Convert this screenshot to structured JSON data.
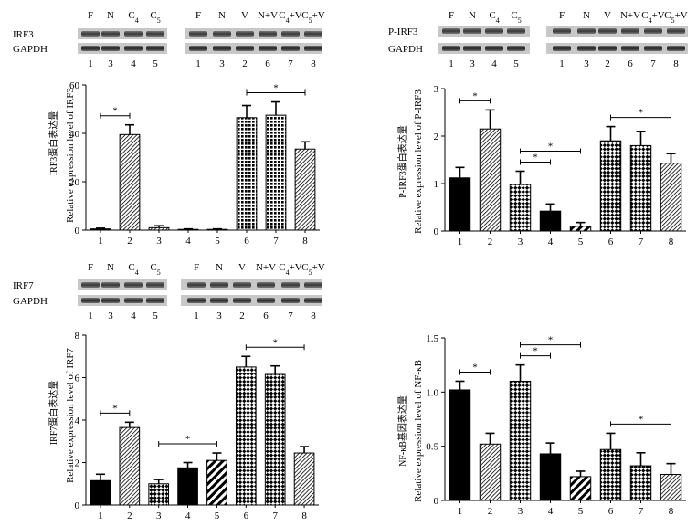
{
  "colors": {
    "ink": "#000000",
    "band": "#1e1e1e",
    "blot_bg": "#c8c8c8",
    "paper": "#ffffff"
  },
  "chart_data": [
    {
      "type": "bar",
      "panel": "IRF3",
      "title": "",
      "categories": [
        "1",
        "2",
        "3",
        "4",
        "5",
        "6",
        "7",
        "8"
      ],
      "values": [
        0.5,
        39.5,
        1.0,
        0.3,
        0.3,
        46.5,
        47.5,
        33.5
      ],
      "errors": [
        0.3,
        4.0,
        0.8,
        0.2,
        0.2,
        5.0,
        5.5,
        3.0
      ],
      "ylim": [
        0,
        60
      ],
      "yticks": [
        "0",
        "20",
        "40",
        "60"
      ],
      "ylabel_cn": "IRF3蛋白表达量",
      "ylabel_en": "Relative expression level of IRF3",
      "patterns": [
        "black",
        "diag",
        "diag",
        "diag",
        "diag",
        "grid",
        "grid",
        "diag"
      ],
      "significance": [
        {
          "from": "1",
          "to": "2",
          "label": "*"
        },
        {
          "from": "6",
          "to": "8",
          "label": "*"
        }
      ],
      "blot": {
        "rows": [
          "IRF3",
          "GAPDH"
        ],
        "left_headers": [
          "F",
          "N",
          "C4",
          "C5"
        ],
        "left_lanes": [
          "1",
          "3",
          "4",
          "5"
        ],
        "right_headers": [
          "F",
          "N",
          "V",
          "N+V",
          "C4+V",
          "C5+V"
        ],
        "right_lanes": [
          "1",
          "3",
          "2",
          "6",
          "7",
          "8"
        ]
      }
    },
    {
      "type": "bar",
      "panel": "P-IRF3",
      "title": "",
      "categories": [
        "1",
        "2",
        "3",
        "4",
        "5",
        "6",
        "7",
        "8"
      ],
      "values": [
        1.12,
        2.15,
        0.98,
        0.42,
        0.1,
        1.9,
        1.8,
        1.43
      ],
      "errors": [
        0.22,
        0.4,
        0.28,
        0.15,
        0.08,
        0.3,
        0.3,
        0.2
      ],
      "ylim": [
        0,
        3
      ],
      "yticks": [
        "0",
        "1",
        "2",
        "3"
      ],
      "ylabel_cn": "P-IRF3蛋白表达量",
      "ylabel_en": "Relative expression level of P-IRF3",
      "patterns": [
        "black",
        "diag",
        "check",
        "black",
        "stripe",
        "check",
        "check",
        "diag"
      ],
      "significance": [
        {
          "from": "1",
          "to": "2",
          "label": "*"
        },
        {
          "from": "3",
          "to": "4",
          "label": "*"
        },
        {
          "from": "3",
          "to": "5",
          "label": "*"
        },
        {
          "from": "6",
          "to": "8",
          "label": "*"
        }
      ],
      "blot": {
        "rows": [
          "P-IRF3",
          "GAPDH"
        ],
        "left_headers": [
          "F",
          "N",
          "C4",
          "C5"
        ],
        "left_lanes": [
          "1",
          "3",
          "4",
          "5"
        ],
        "right_headers": [
          "F",
          "N",
          "V",
          "N+V",
          "C4+V",
          "C5+V"
        ],
        "right_lanes": [
          "1",
          "3",
          "2",
          "6",
          "7",
          "8"
        ]
      }
    },
    {
      "type": "bar",
      "panel": "IRF7",
      "title": "",
      "categories": [
        "1",
        "2",
        "3",
        "4",
        "5",
        "6",
        "7",
        "8"
      ],
      "values": [
        1.15,
        3.65,
        1.0,
        1.75,
        2.1,
        6.5,
        6.15,
        2.45
      ],
      "errors": [
        0.3,
        0.25,
        0.2,
        0.25,
        0.35,
        0.5,
        0.4,
        0.3
      ],
      "ylim": [
        0,
        8
      ],
      "yticks": [
        "0",
        "2",
        "4",
        "6",
        "8"
      ],
      "ylabel_cn": "IRF7蛋白表达量",
      "ylabel_en": "Relative expression level of IRF7",
      "patterns": [
        "black",
        "diag",
        "check",
        "black",
        "stripe",
        "check",
        "check",
        "diag"
      ],
      "significance": [
        {
          "from": "1",
          "to": "2",
          "label": "*"
        },
        {
          "from": "3",
          "to": "5",
          "label": "*"
        },
        {
          "from": "6",
          "to": "8",
          "label": "*"
        }
      ],
      "blot": {
        "rows": [
          "IRF7",
          "GAPDH"
        ],
        "left_headers": [
          "F",
          "N",
          "C4",
          "C5"
        ],
        "left_lanes": [
          "1",
          "3",
          "4",
          "5"
        ],
        "right_headers": [
          "F",
          "N",
          "V",
          "N+V",
          "C4+V",
          "C5+V"
        ],
        "right_lanes": [
          "1",
          "3",
          "2",
          "6",
          "7",
          "8"
        ]
      }
    },
    {
      "type": "bar",
      "panel": "NF-kB",
      "title": "",
      "categories": [
        "1",
        "2",
        "3",
        "4",
        "5",
        "6",
        "7",
        "8"
      ],
      "values": [
        1.02,
        0.52,
        1.1,
        0.43,
        0.22,
        0.47,
        0.32,
        0.24
      ],
      "errors": [
        0.08,
        0.1,
        0.15,
        0.1,
        0.05,
        0.15,
        0.12,
        0.1
      ],
      "ylim": [
        0,
        1.5
      ],
      "yticks": [
        "0",
        "0.5",
        "1.0",
        "1.5"
      ],
      "ylabel_cn": "NF-κB基因表达量",
      "ylabel_en": "Relative expression level of NF-κB",
      "patterns": [
        "black",
        "diag",
        "check",
        "black",
        "stripe",
        "check",
        "check",
        "diag"
      ],
      "significance": [
        {
          "from": "1",
          "to": "2",
          "label": "*"
        },
        {
          "from": "3",
          "to": "4",
          "label": "*"
        },
        {
          "from": "3",
          "to": "5",
          "label": "*"
        },
        {
          "from": "6",
          "to": "8",
          "label": "*"
        }
      ]
    }
  ]
}
